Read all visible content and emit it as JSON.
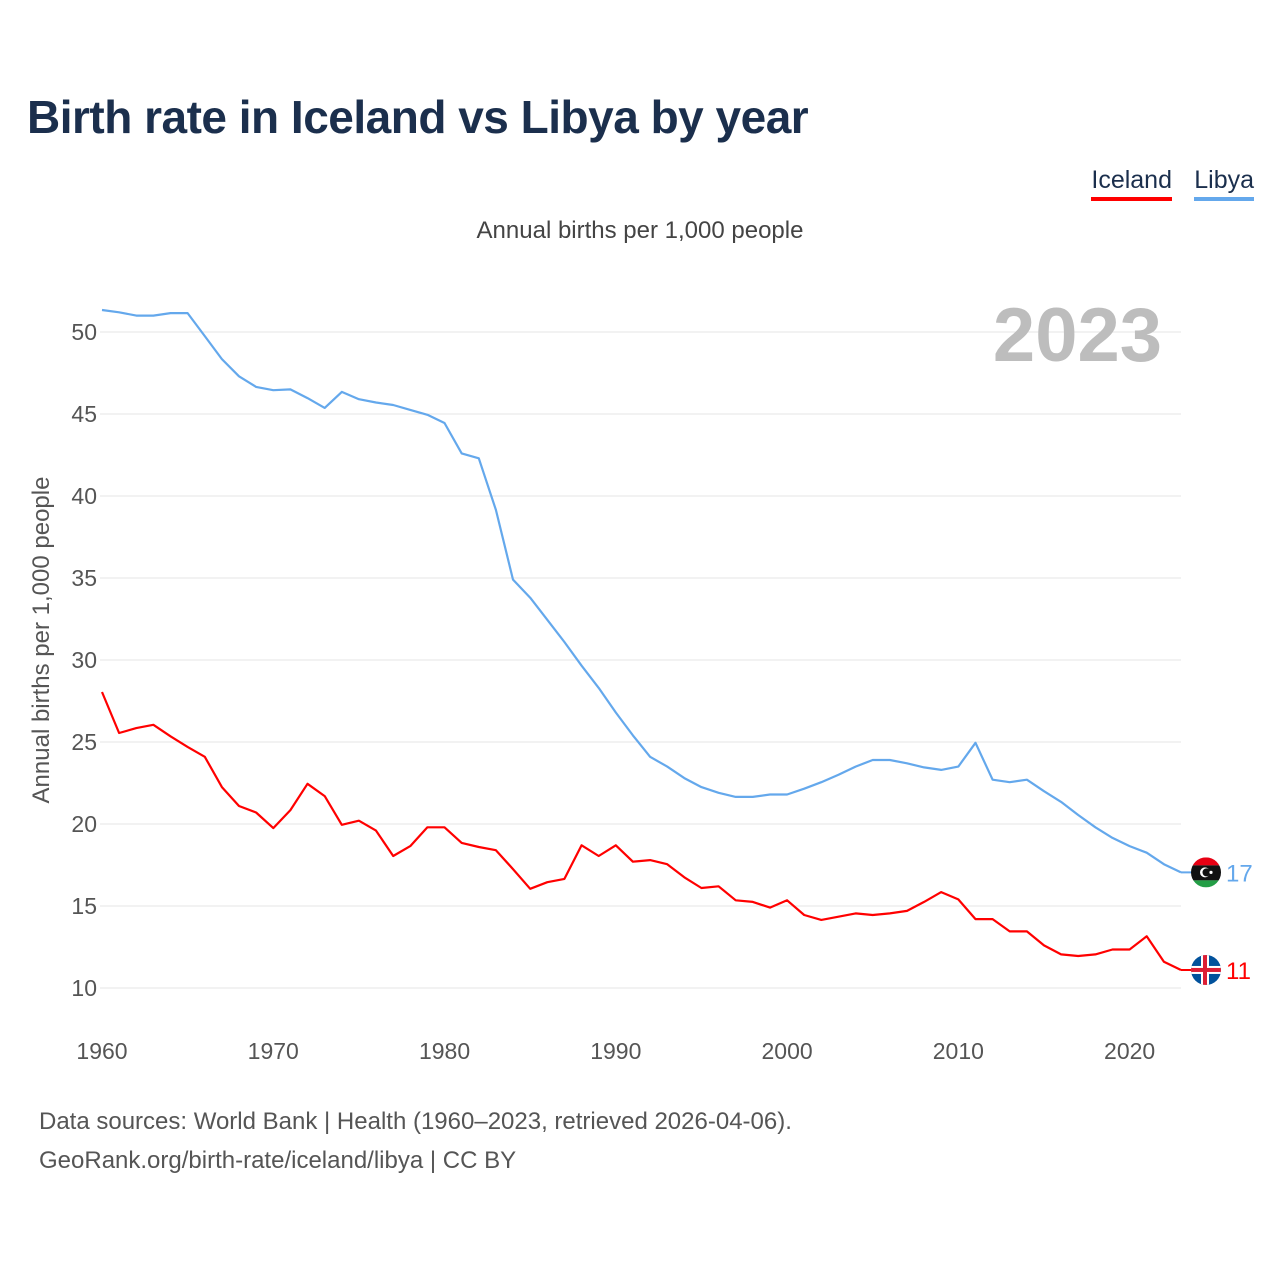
{
  "chart_data": {
    "type": "line",
    "title": "Birth rate in Iceland vs Libya by year",
    "subtitle": "Annual births per 1,000 people",
    "ylabel": "Annual births per 1,000 people",
    "xlabel": "",
    "current_year": "2023",
    "xlim": [
      1960,
      2023
    ],
    "ylim": [
      10,
      50
    ],
    "yticks": [
      10,
      15,
      20,
      25,
      30,
      35,
      40,
      45,
      50
    ],
    "xticks": [
      1960,
      1970,
      1980,
      1990,
      2000,
      2010,
      2020
    ],
    "grid": true,
    "legend_position": "top-right",
    "x_start": 1960,
    "series": [
      {
        "name": "Iceland",
        "color": "#ff0000",
        "end_label": "11",
        "values": [
          28.05,
          25.55,
          25.85,
          26.05,
          25.35,
          24.7,
          24.1,
          22.25,
          21.1,
          20.7,
          19.75,
          20.85,
          22.45,
          21.7,
          19.95,
          20.2,
          19.6,
          18.05,
          18.65,
          19.8,
          19.8,
          18.85,
          18.6,
          18.4,
          17.25,
          16.05,
          16.45,
          16.65,
          18.7,
          18.05,
          18.7,
          17.7,
          17.8,
          17.55,
          16.75,
          16.1,
          16.2,
          15.35,
          15.25,
          14.9,
          15.35,
          14.45,
          14.15,
          14.35,
          14.55,
          14.45,
          14.55,
          14.7,
          15.25,
          15.85,
          15.4,
          14.2,
          14.2,
          13.45,
          13.45,
          12.6,
          12.05,
          11.95,
          12.05,
          12.35,
          12.35,
          13.15,
          11.6,
          11.1
        ]
      },
      {
        "name": "Libya",
        "color": "#64a8ec",
        "end_label": "17",
        "values": [
          51.34,
          51.2,
          51.0,
          51.0,
          51.15,
          51.15,
          49.75,
          48.35,
          47.3,
          46.65,
          46.45,
          46.5,
          45.97,
          45.37,
          46.35,
          45.9,
          45.7,
          45.55,
          45.25,
          44.95,
          44.45,
          42.6,
          42.3,
          39.15,
          34.9,
          33.8,
          32.45,
          31.1,
          29.65,
          28.3,
          26.8,
          25.4,
          24.1,
          23.5,
          22.8,
          22.25,
          21.9,
          21.65,
          21.65,
          21.8,
          21.8,
          22.15,
          22.55,
          23.0,
          23.5,
          23.9,
          23.9,
          23.7,
          23.45,
          23.3,
          23.5,
          24.95,
          22.7,
          22.55,
          22.7,
          22.0,
          21.35,
          20.55,
          19.8,
          19.15,
          18.65,
          18.25,
          17.55,
          17.05
        ]
      }
    ]
  },
  "footer": {
    "line1": "Data sources: World Bank | Health (1960–2023, retrieved 2026-04-06).",
    "line2": "GeoRank.org/birth-rate/iceland/libya | CC BY"
  }
}
